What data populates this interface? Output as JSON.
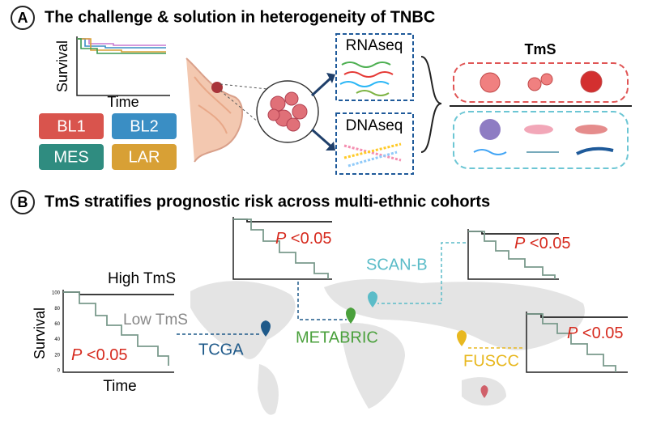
{
  "panel_a": {
    "label": "A",
    "title": "The challenge & solution in heterogeneity of TNBC",
    "km": {
      "y_label": "Survival",
      "x_label": "Time"
    },
    "subtypes": [
      "BL1",
      "BL2",
      "MES",
      "LAR"
    ],
    "assays": [
      "RNAseq",
      "DNAseq"
    ],
    "tms_label": "TmS"
  },
  "panel_b": {
    "label": "B",
    "title": "TmS stratifies prognostic risk across multi-ethnic cohorts",
    "km": {
      "y_label": "Survival",
      "x_label": "Time",
      "high": "High TmS",
      "low": "Low TmS",
      "yticks": [
        100,
        80,
        60,
        40,
        20,
        0
      ]
    },
    "cohorts": [
      {
        "name": "TCGA",
        "p_symbol": "P",
        "p_text": "<0.05"
      },
      {
        "name": "METABRIC",
        "p_symbol": "P",
        "p_text": "<0.05"
      },
      {
        "name": "SCAN-B",
        "p_symbol": "P",
        "p_text": "<0.05"
      },
      {
        "name": "FUSCC",
        "p_symbol": "P",
        "p_text": "<0.05"
      }
    ]
  }
}
